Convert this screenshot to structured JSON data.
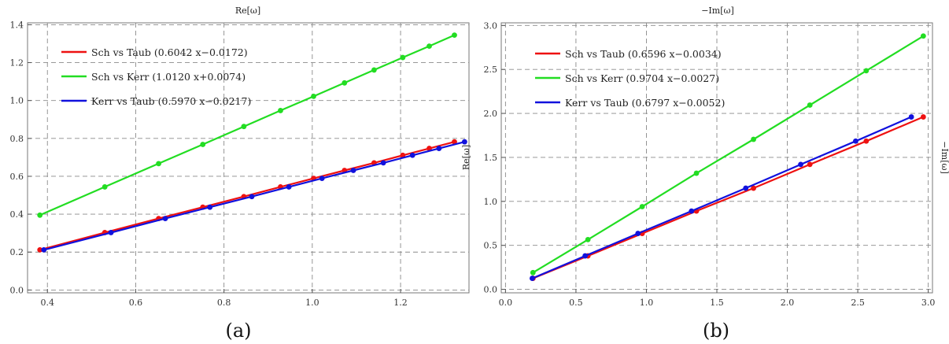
{
  "panels": [
    {
      "caption": "(a)",
      "chart_data": {
        "type": "line",
        "title": "Re[ω]",
        "xlabel": "",
        "ylabel": "",
        "xlim": [
          0.355,
          1.355
        ],
        "ylim": [
          -0.015,
          1.41
        ],
        "xticks": [
          0.4,
          0.6,
          0.8,
          1.0,
          1.2
        ],
        "xtick_labels": [
          "0.4",
          "0.6",
          "0.8",
          "1.0",
          "1.2"
        ],
        "yticks": [
          0.0,
          0.2,
          0.4,
          0.6,
          0.8,
          1.0,
          1.2,
          1.4
        ],
        "ytick_labels": [
          "0.0",
          "0.2",
          "0.4",
          "0.6",
          "0.8",
          "1.0",
          "1.2",
          "1.4"
        ],
        "grid": true,
        "legend_position": "top-left",
        "series": [
          {
            "name": "Sch vs Taub (0.6042 x−0.0172)",
            "color": "#ee1111",
            "x": [
              0.383,
              0.53,
              0.652,
              0.752,
              0.845,
              0.928,
              1.003,
              1.073,
              1.14,
              1.205,
              1.265,
              1.322
            ],
            "y": [
              0.212,
              0.303,
              0.377,
              0.437,
              0.493,
              0.544,
              0.589,
              0.631,
              0.671,
              0.711,
              0.747,
              0.782
            ]
          },
          {
            "name": "Sch vs Kerr (1.0120 x+0.0074)",
            "color": "#22dd22",
            "x": [
              0.383,
              0.53,
              0.652,
              0.752,
              0.845,
              0.928,
              1.003,
              1.073,
              1.14,
              1.205,
              1.265,
              1.322
            ],
            "y": [
              0.395,
              0.544,
              0.667,
              0.768,
              0.863,
              0.947,
              1.022,
              1.093,
              1.161,
              1.227,
              1.287,
              1.345
            ]
          },
          {
            "name": "Kerr vs Taub (0.5970 x−0.0217)",
            "color": "#1111dd",
            "x": [
              0.392,
              0.544,
              0.667,
              0.768,
              0.863,
              0.947,
              1.022,
              1.093,
              1.161,
              1.227,
              1.287,
              1.345
            ],
            "y": [
              0.212,
              0.303,
              0.377,
              0.437,
              0.493,
              0.544,
              0.589,
              0.631,
              0.671,
              0.711,
              0.747,
              0.782
            ]
          }
        ]
      }
    },
    {
      "caption": "(b)",
      "right_label": "−Im[ω]",
      "chart_data": {
        "type": "line",
        "title": "−Im[ω]",
        "xlabel": "",
        "ylabel": "Re[ω]",
        "xlim": [
          -0.03,
          3.03
        ],
        "ylim": [
          -0.04,
          3.03
        ],
        "xticks": [
          0.0,
          0.5,
          1.0,
          1.5,
          2.0,
          2.5,
          3.0
        ],
        "xtick_labels": [
          "0.0",
          "0.5",
          "1.0",
          "1.5",
          "2.0",
          "2.5",
          "3.0"
        ],
        "yticks": [
          0.0,
          0.5,
          1.0,
          1.5,
          2.0,
          2.5,
          3.0
        ],
        "ytick_labels": [
          "0.0",
          "0.5",
          "1.0",
          "1.5",
          "2.0",
          "2.5",
          "3.0"
        ],
        "grid": true,
        "legend_position": "top-left",
        "series": [
          {
            "name": "Sch vs Taub (0.6596 x−0.0034)",
            "color": "#ee1111",
            "x": [
              0.195,
              0.585,
              0.97,
              1.355,
              1.76,
              2.16,
              2.56,
              2.965
            ],
            "y": [
              0.125,
              0.38,
              0.635,
              0.89,
              1.15,
              1.42,
              1.685,
              1.96
            ]
          },
          {
            "name": "Sch vs Kerr (0.9704 x−0.0027)",
            "color": "#22dd22",
            "x": [
              0.195,
              0.585,
              0.97,
              1.355,
              1.76,
              2.16,
              2.56,
              2.965
            ],
            "y": [
              0.19,
              0.565,
              0.94,
              1.32,
              1.705,
              2.095,
              2.485,
              2.88
            ]
          },
          {
            "name": "Kerr vs Taub (0.6797 x−0.0052)",
            "color": "#1111dd",
            "x": [
              0.19,
              0.565,
              0.94,
              1.32,
              1.705,
              2.095,
              2.485,
              2.88
            ],
            "y": [
              0.125,
              0.38,
              0.635,
              0.89,
              1.15,
              1.42,
              1.685,
              1.96
            ]
          }
        ]
      }
    }
  ]
}
